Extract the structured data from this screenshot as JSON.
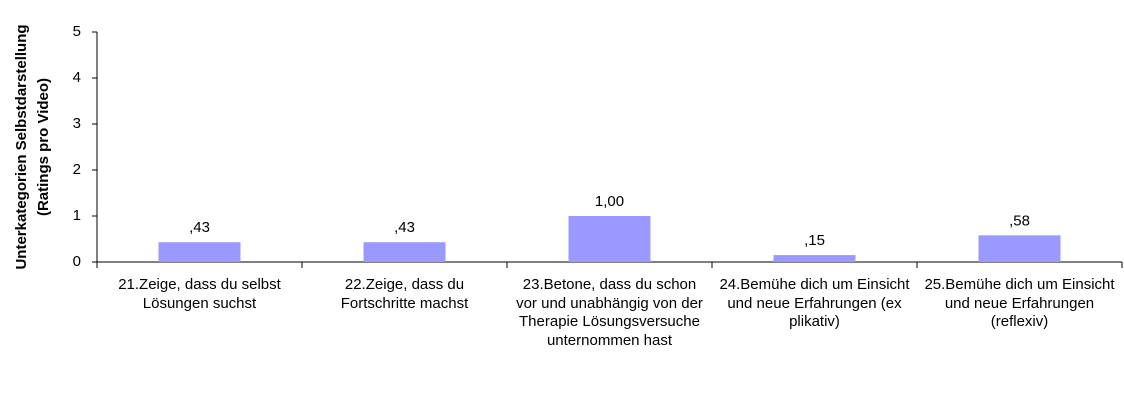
{
  "chart_data": {
    "type": "bar",
    "y_label": [
      "Unterkategorien Selbstdarstellung",
      "(Ratings pro Video)"
    ],
    "categories": [
      "21.Zeige, dass du selbst Lösungen suchst",
      "22.Zeige, dass du Fortschritte machst",
      "23.Betone, dass du schon vor und unabhängig von der Therapie Lösungsversuche unternommen hast",
      "24.Bemühe dich um Einsicht und neue Erfahrungen (ex plikativ)",
      "25.Bemühe dich um Einsicht und neue Erfahrungen (reflexiv)"
    ],
    "values": [
      0.43,
      0.43,
      1.0,
      0.15,
      0.58
    ],
    "value_labels": [
      ",43",
      ",43",
      "1,00",
      ",15",
      ",58"
    ],
    "color": "#9999ff",
    "ylim": [
      0,
      5
    ],
    "yticks": [
      0,
      1,
      2,
      3,
      4,
      5
    ],
    "grid": false
  }
}
